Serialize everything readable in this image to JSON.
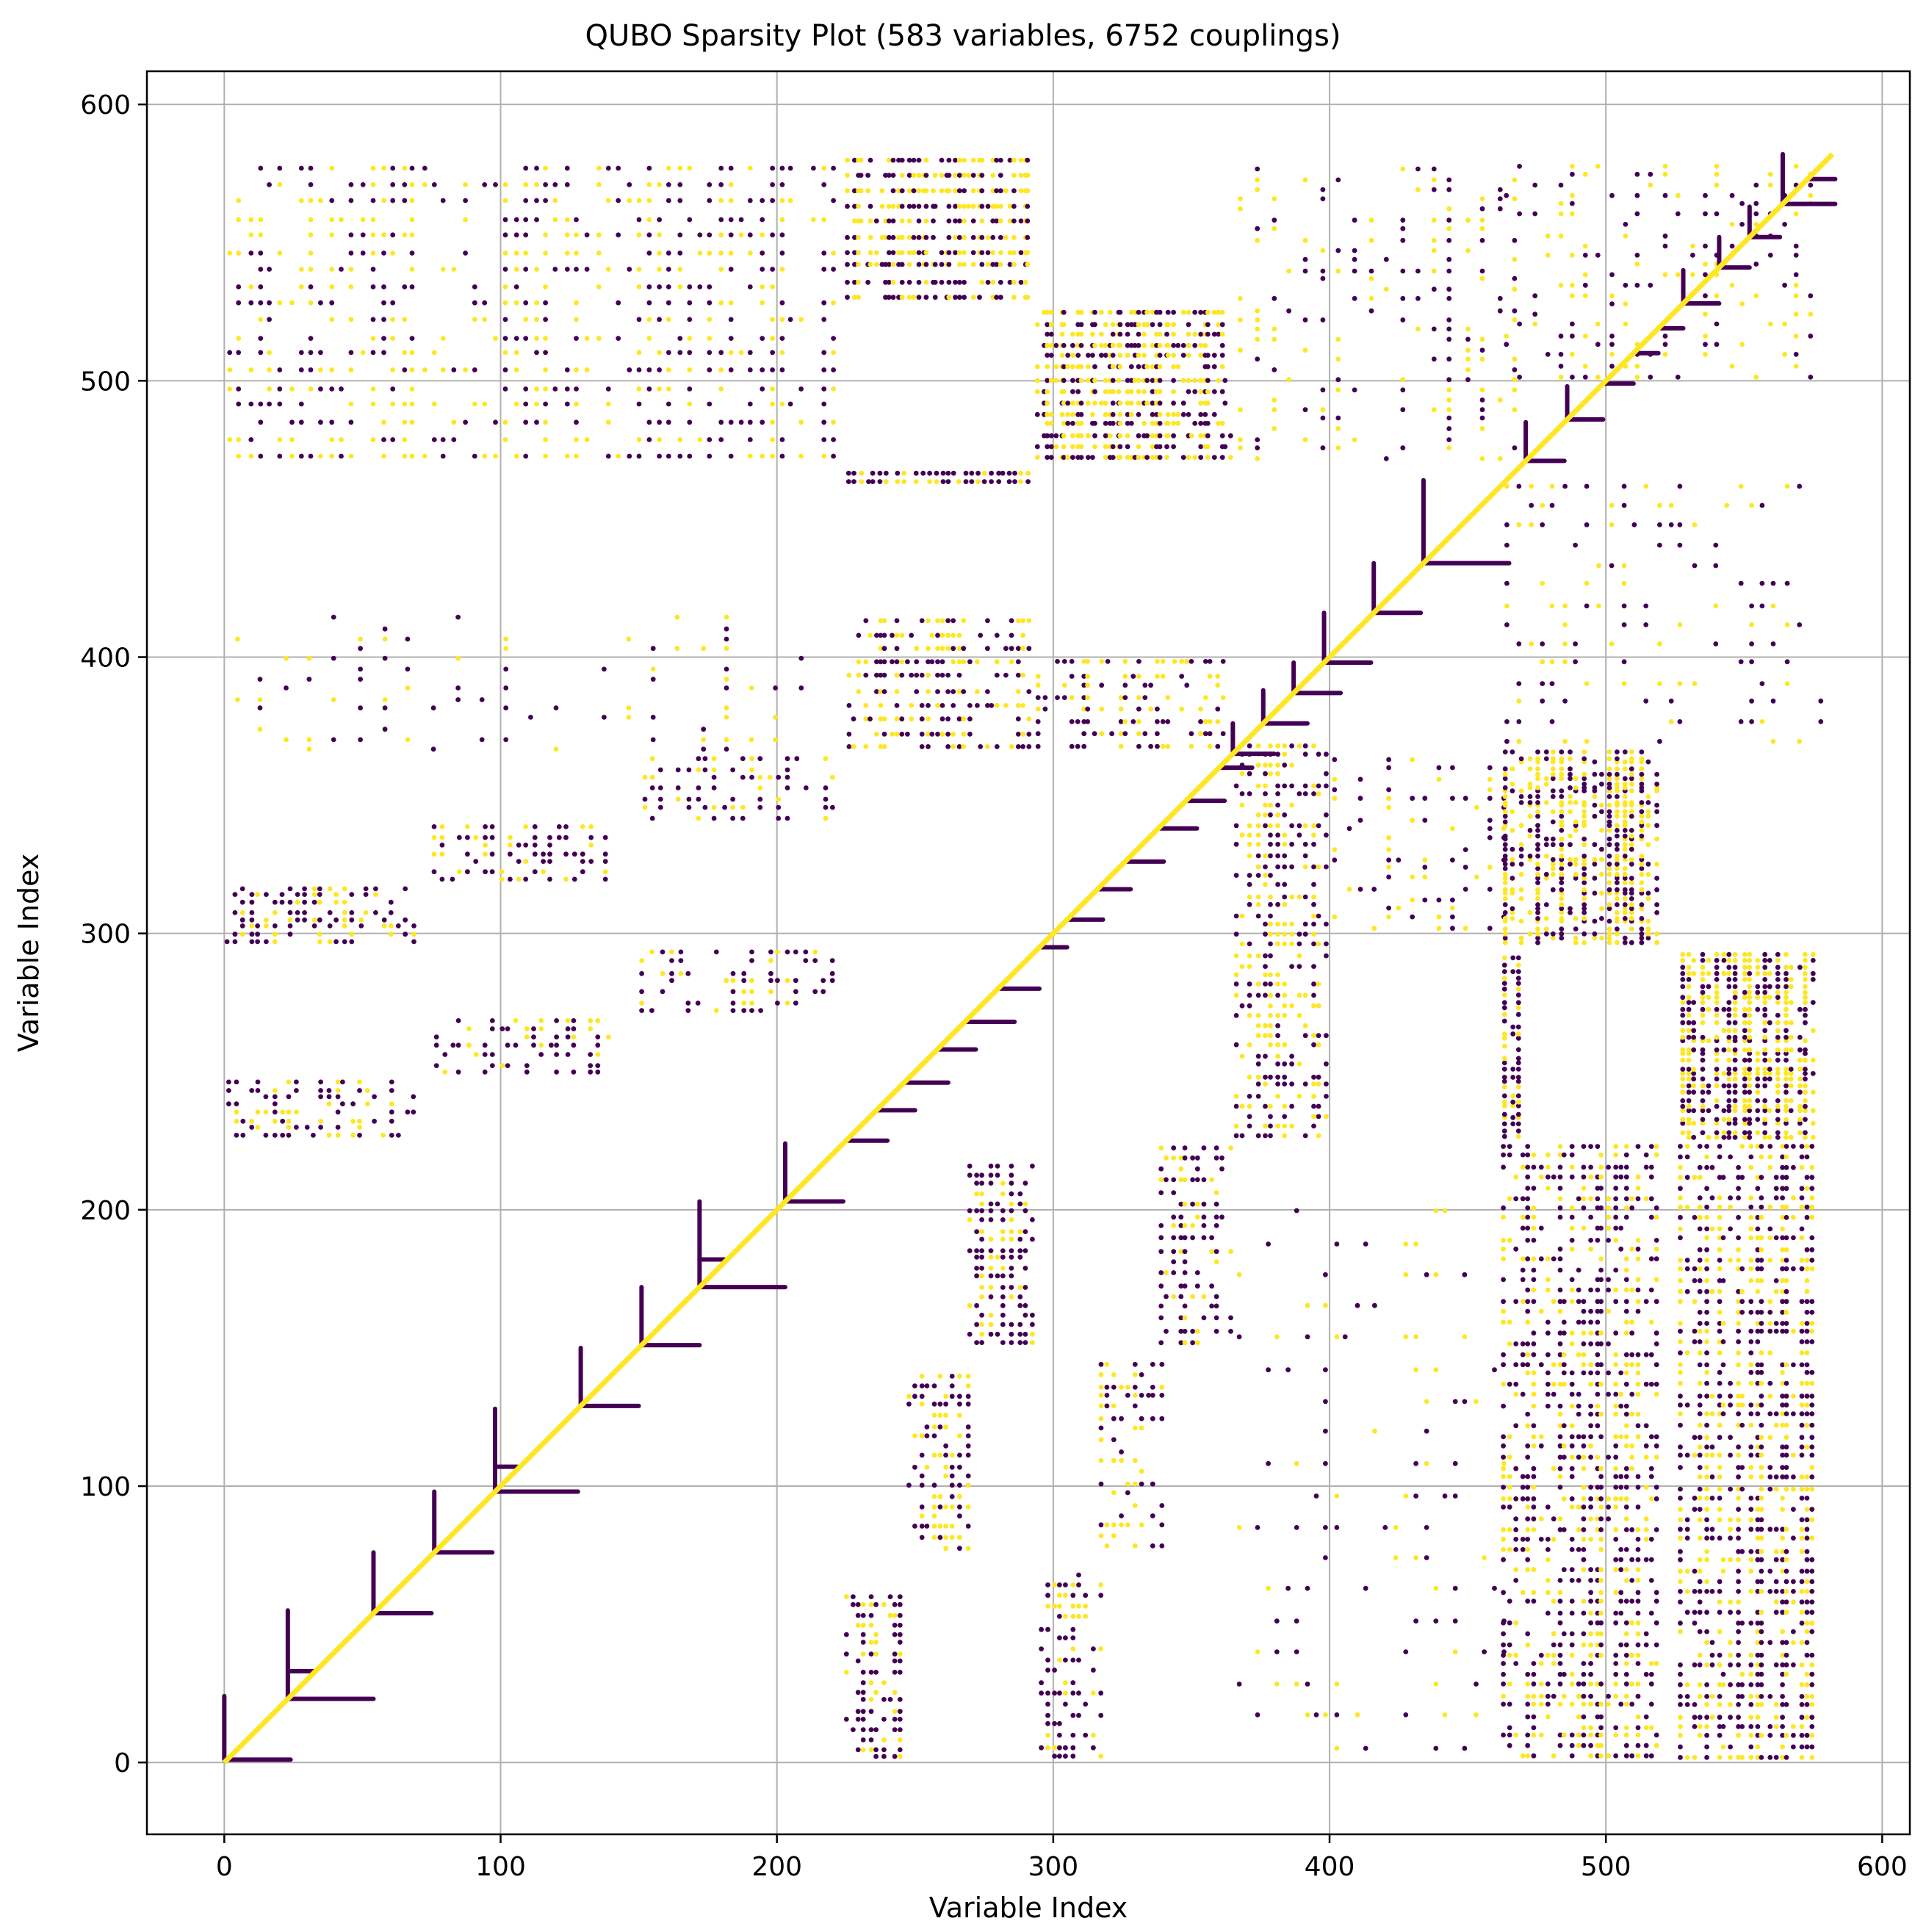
{
  "chart_data": {
    "type": "scatter",
    "title": "QUBO Sparsity Plot (583 variables, 6752 couplings)",
    "xlabel": "Variable Index",
    "ylabel": "Variable Index",
    "xlim": [
      -28,
      610
    ],
    "ylim": [
      -26,
      612
    ],
    "xticks": [
      0,
      100,
      200,
      300,
      400,
      500,
      600
    ],
    "yticks": [
      0,
      100,
      200,
      300,
      400,
      500,
      600
    ],
    "xtick_labels": [
      "0",
      "100",
      "200",
      "300",
      "400",
      "500",
      "600"
    ],
    "ytick_labels": [
      "0",
      "100",
      "200",
      "300",
      "400",
      "500",
      "600"
    ],
    "grid": true,
    "n_variables": 583,
    "n_couplings": 6752,
    "colors": {
      "negative": "#440154",
      "positive": "#fde725",
      "grid": "#b0b0b0"
    },
    "series": [
      {
        "name": "diagonal",
        "color": "#fde725",
        "style": "line",
        "points": [
          [
            0,
            0
          ],
          [
            582,
            582
          ]
        ]
      },
      {
        "name": "block-arms (dark)",
        "color": "#440154",
        "style": "segments",
        "segments": [
          [
            [
              0,
              1
            ],
            [
              24,
              1
            ]
          ],
          [
            [
              0,
              1
            ],
            [
              0,
              24
            ]
          ],
          [
            [
              23,
              23
            ],
            [
              54,
              23
            ]
          ],
          [
            [
              23,
              23
            ],
            [
              23,
              55
            ]
          ],
          [
            [
              23,
              33
            ],
            [
              33,
              33
            ]
          ],
          [
            [
              54,
              54
            ],
            [
              75,
              54
            ]
          ],
          [
            [
              54,
              54
            ],
            [
              54,
              76
            ]
          ],
          [
            [
              76,
              76
            ],
            [
              97,
              76
            ]
          ],
          [
            [
              76,
              76
            ],
            [
              76,
              98
            ]
          ],
          [
            [
              98,
              98
            ],
            [
              128,
              98
            ]
          ],
          [
            [
              98,
              98
            ],
            [
              98,
              128
            ]
          ],
          [
            [
              98,
              107
            ],
            [
              106,
              107
            ]
          ],
          [
            [
              129,
              129
            ],
            [
              150,
              129
            ]
          ],
          [
            [
              129,
              129
            ],
            [
              129,
              150
            ]
          ],
          [
            [
              151,
              151
            ],
            [
              172,
              151
            ]
          ],
          [
            [
              151,
              151
            ],
            [
              151,
              172
            ]
          ],
          [
            [
              172,
              172
            ],
            [
              203,
              172
            ]
          ],
          [
            [
              172,
              172
            ],
            [
              172,
              203
            ]
          ],
          [
            [
              172,
              182
            ],
            [
              181,
              182
            ]
          ],
          [
            [
              203,
              203
            ],
            [
              224,
              203
            ]
          ],
          [
            [
              203,
              203
            ],
            [
              203,
              224
            ]
          ],
          [
            [
              225,
              225
            ],
            [
              240,
              225
            ]
          ],
          [
            [
              236,
              236
            ],
            [
              250,
              236
            ]
          ],
          [
            [
              246,
              246
            ],
            [
              262,
              246
            ]
          ],
          [
            [
              258,
              258
            ],
            [
              272,
              258
            ]
          ],
          [
            [
              268,
              268
            ],
            [
              286,
              268
            ]
          ],
          [
            [
              280,
              280
            ],
            [
              295,
              280
            ]
          ],
          [
            [
              295,
              295
            ],
            [
              305,
              295
            ]
          ],
          [
            [
              305,
              305
            ],
            [
              318,
              305
            ]
          ],
          [
            [
              316,
              316
            ],
            [
              328,
              316
            ]
          ],
          [
            [
              326,
              326
            ],
            [
              340,
              326
            ]
          ],
          [
            [
              338,
              338
            ],
            [
              352,
              338
            ]
          ],
          [
            [
              348,
              348
            ],
            [
              362,
              348
            ]
          ],
          [
            [
              360,
              360
            ],
            [
              372,
              360
            ]
          ],
          [
            [
              365,
              365
            ],
            [
              380,
              365
            ]
          ],
          [
            [
              365,
              365
            ],
            [
              365,
              376
            ]
          ],
          [
            [
              376,
              376
            ],
            [
              392,
              376
            ]
          ],
          [
            [
              376,
              376
            ],
            [
              376,
              388
            ]
          ],
          [
            [
              387,
              387
            ],
            [
              404,
              387
            ]
          ],
          [
            [
              387,
              387
            ],
            [
              387,
              398
            ]
          ],
          [
            [
              398,
              398
            ],
            [
              415,
              398
            ]
          ],
          [
            [
              398,
              398
            ],
            [
              398,
              416
            ]
          ],
          [
            [
              416,
              416
            ],
            [
              433,
              416
            ]
          ],
          [
            [
              416,
              416
            ],
            [
              416,
              434
            ]
          ],
          [
            [
              434,
              434
            ],
            [
              465,
              434
            ]
          ],
          [
            [
              434,
              434
            ],
            [
              434,
              464
            ]
          ],
          [
            [
              471,
              471
            ],
            [
              485,
              471
            ]
          ],
          [
            [
              471,
              471
            ],
            [
              471,
              485
            ]
          ],
          [
            [
              486,
              486
            ],
            [
              499,
              486
            ]
          ],
          [
            [
              486,
              486
            ],
            [
              486,
              498
            ]
          ],
          [
            [
              499,
              499
            ],
            [
              510,
              499
            ]
          ],
          [
            [
              510,
              510
            ],
            [
              519,
              510
            ]
          ],
          [
            [
              519,
              519
            ],
            [
              528,
              519
            ]
          ],
          [
            [
              528,
              528
            ],
            [
              541,
              528
            ]
          ],
          [
            [
              528,
              528
            ],
            [
              528,
              540
            ]
          ],
          [
            [
              541,
              541
            ],
            [
              552,
              541
            ]
          ],
          [
            [
              541,
              541
            ],
            [
              541,
              552
            ]
          ],
          [
            [
              552,
              552
            ],
            [
              563,
              552
            ]
          ],
          [
            [
              552,
              552
            ],
            [
              552,
              563
            ]
          ],
          [
            [
              564,
              564
            ],
            [
              583,
              564
            ]
          ],
          [
            [
              564,
              564
            ],
            [
              564,
              582
            ]
          ],
          [
            [
              573,
              573
            ],
            [
              583,
              573
            ]
          ]
        ]
      },
      {
        "name": "off-diagonal couplings",
        "colors": [
          "#440154",
          "#fde725"
        ],
        "style": "scatter-blocks",
        "blocks": [
          {
            "xr": [
              0,
              222
            ],
            "yr": [
              470,
              580
            ],
            "nx": 60,
            "ny": 18,
            "frac": 0.55,
            "yellow": 0.45
          },
          {
            "xr": [
              225,
              292
            ],
            "yr": [
              528,
              582
            ],
            "nx": 40,
            "ny": 10,
            "frac": 0.75,
            "yellow": 0.55
          },
          {
            "xr": [
              225,
              292
            ],
            "yr": [
              462,
              468
            ],
            "nx": 30,
            "ny": 2,
            "frac": 0.8,
            "yellow": 0.3
          },
          {
            "xr": [
              294,
              365
            ],
            "yr": [
              470,
              527
            ],
            "nx": 45,
            "ny": 14,
            "frac": 0.65,
            "yellow": 0.55
          },
          {
            "xr": [
              0,
              222
            ],
            "yr": [
              365,
              416
            ],
            "nx": 25,
            "ny": 14,
            "frac": 0.35,
            "yellow": 0.4
          },
          {
            "xr": [
              225,
              292
            ],
            "yr": [
              365,
              416
            ],
            "nx": 35,
            "ny": 10,
            "frac": 0.55,
            "yellow": 0.45
          },
          {
            "xr": [
              294,
              365
            ],
            "yr": [
              366,
              400
            ],
            "nx": 32,
            "ny": 8,
            "frac": 0.5,
            "yellow": 0.45
          },
          {
            "xr": [
              0,
              70
            ],
            "yr": [
              295,
              318
            ],
            "nx": 25,
            "ny": 8,
            "frac": 0.45,
            "yellow": 0.35
          },
          {
            "xr": [
              75,
              140
            ],
            "yr": [
              318,
              340
            ],
            "nx": 22,
            "ny": 7,
            "frac": 0.45,
            "yellow": 0.3
          },
          {
            "xr": [
              150,
              222
            ],
            "yr": [
              340,
              365
            ],
            "nx": 22,
            "ny": 7,
            "frac": 0.45,
            "yellow": 0.3
          },
          {
            "xr": [
              0,
              70
            ],
            "yr": [
              225,
              248
            ],
            "nx": 25,
            "ny": 8,
            "frac": 0.45,
            "yellow": 0.35
          },
          {
            "xr": [
              75,
              140
            ],
            "yr": [
              248,
              270
            ],
            "nx": 22,
            "ny": 7,
            "frac": 0.45,
            "yellow": 0.3
          },
          {
            "xr": [
              150,
              222
            ],
            "yr": [
              270,
              295
            ],
            "nx": 22,
            "ny": 7,
            "frac": 0.45,
            "yellow": 0.3
          },
          {
            "xr": [
              268,
              294
            ],
            "yr": [
              150,
              218
            ],
            "nx": 10,
            "ny": 20,
            "frac": 0.6,
            "yellow": 0.25
          },
          {
            "xr": [
              246,
              270
            ],
            "yr": [
              76,
              142
            ],
            "nx": 10,
            "ny": 18,
            "frac": 0.55,
            "yellow": 0.3
          },
          {
            "xr": [
              224,
              246
            ],
            "yr": [
              0,
              62
            ],
            "nx": 10,
            "ny": 18,
            "frac": 0.55,
            "yellow": 0.35
          },
          {
            "xr": [
              294,
              318
            ],
            "yr": [
              0,
              70
            ],
            "nx": 10,
            "ny": 18,
            "frac": 0.45,
            "yellow": 0.35
          },
          {
            "xr": [
              316,
              340
            ],
            "yr": [
              76,
              146
            ],
            "nx": 10,
            "ny": 18,
            "frac": 0.5,
            "yellow": 0.35
          },
          {
            "xr": [
              338,
              365
            ],
            "yr": [
              150,
              225
            ],
            "nx": 12,
            "ny": 18,
            "frac": 0.5,
            "yellow": 0.35
          },
          {
            "xr": [
              365,
              465
            ],
            "yr": [
              0,
              205
            ],
            "nx": 28,
            "ny": 18,
            "frac": 0.3,
            "yellow": 0.4
          },
          {
            "xr": [
              365,
              400
            ],
            "yr": [
              225,
              370
            ],
            "nx": 14,
            "ny": 40,
            "frac": 0.55,
            "yellow": 0.45
          },
          {
            "xr": [
              400,
              465
            ],
            "yr": [
              300,
              365
            ],
            "nx": 14,
            "ny": 18,
            "frac": 0.3,
            "yellow": 0.4
          },
          {
            "xr": [
              365,
              470
            ],
            "yr": [
              470,
              578
            ],
            "nx": 18,
            "ny": 30,
            "frac": 0.35,
            "yellow": 0.45
          },
          {
            "xr": [
              462,
              520
            ],
            "yr": [
              296,
              366
            ],
            "nx": 20,
            "ny": 40,
            "frac": 0.65,
            "yellow": 0.5
          },
          {
            "xr": [
              462,
              470
            ],
            "yr": [
              225,
              292
            ],
            "nx": 3,
            "ny": 30,
            "frac": 0.7,
            "yellow": 0.3
          },
          {
            "xr": [
              462,
              520
            ],
            "yr": [
              0,
              225
            ],
            "nx": 26,
            "ny": 60,
            "frac": 0.55,
            "yellow": 0.4
          },
          {
            "xr": [
              526,
              576
            ],
            "yr": [
              0,
              225
            ],
            "nx": 22,
            "ny": 60,
            "frac": 0.6,
            "yellow": 0.4
          },
          {
            "xr": [
              526,
              576
            ],
            "yr": [
              225,
              294
            ],
            "nx": 20,
            "ny": 30,
            "frac": 0.7,
            "yellow": 0.5
          },
          {
            "xr": [
              462,
              580
            ],
            "yr": [
              366,
              465
            ],
            "nx": 28,
            "ny": 14,
            "frac": 0.35,
            "yellow": 0.45
          },
          {
            "xr": [
              462,
              576
            ],
            "yr": [
              500,
              580
            ],
            "nx": 24,
            "ny": 22,
            "frac": 0.35,
            "yellow": 0.45
          }
        ]
      }
    ]
  }
}
